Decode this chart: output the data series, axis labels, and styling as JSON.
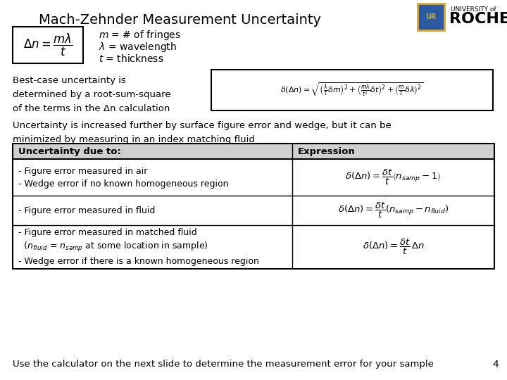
{
  "title": "Mach-Zehnder Measurement Uncertainty",
  "title_fontsize": 14,
  "background_color": "#ffffff",
  "formula_box_text": "$\\Delta n = \\dfrac{m\\lambda}{t}$",
  "legend_lines": [
    "$m$ = # of fringes",
    "$\\lambda$ = wavelength",
    "$t$ = thickness"
  ],
  "best_case_text": "Best-case uncertainty is\ndetermined by a root-sum-square\nof the terms in the Δn calculation",
  "rss_formula": "$\\delta(\\Delta n) = \\sqrt{\\left(\\frac{\\lambda}{t}\\delta m\\right)^2 + \\left(\\frac{m\\lambda}{t^2}\\delta t\\right)^2 + \\left(\\frac{m}{t}\\delta\\lambda\\right)^2}$",
  "intro_text": "Uncertainty is increased further by surface figure error and wedge, but it can be\nminimized by measuring in an index matching fluid",
  "table_header": [
    "Uncertainty due to:",
    "Expression"
  ],
  "table_row1_left": "- Figure error measured in air\n- Wedge error if no known homogeneous region",
  "table_row1_right": "$\\delta(\\Delta n) = \\dfrac{\\delta t}{t}\\left(n_{samp} - 1\\right)$",
  "table_row2_left": "- Figure error measured in fluid",
  "table_row2_right": "$\\delta(\\Delta n) = \\dfrac{\\delta t}{t}\\left(n_{samp} - n_{fluid}\\right)$",
  "table_row3_left": "- Figure error measured in matched fluid\n  ($n_{fluid}$ = $n_{samp}$ at some location in sample)\n- Wedge error if there is a known homogeneous region",
  "table_row3_right": "$\\delta(\\Delta n) = \\dfrac{\\delta t}{t}\\,\\Delta n$",
  "footer_text": "Use the calculator on the next slide to determine the measurement error for your sample",
  "page_number": "4",
  "table_header_bg": "#d0d0d0",
  "table_bg": "#ffffff",
  "table_line_color": "#000000",
  "logo_text1": "UNIVERSITY of",
  "logo_text2": "ROCHESTER"
}
